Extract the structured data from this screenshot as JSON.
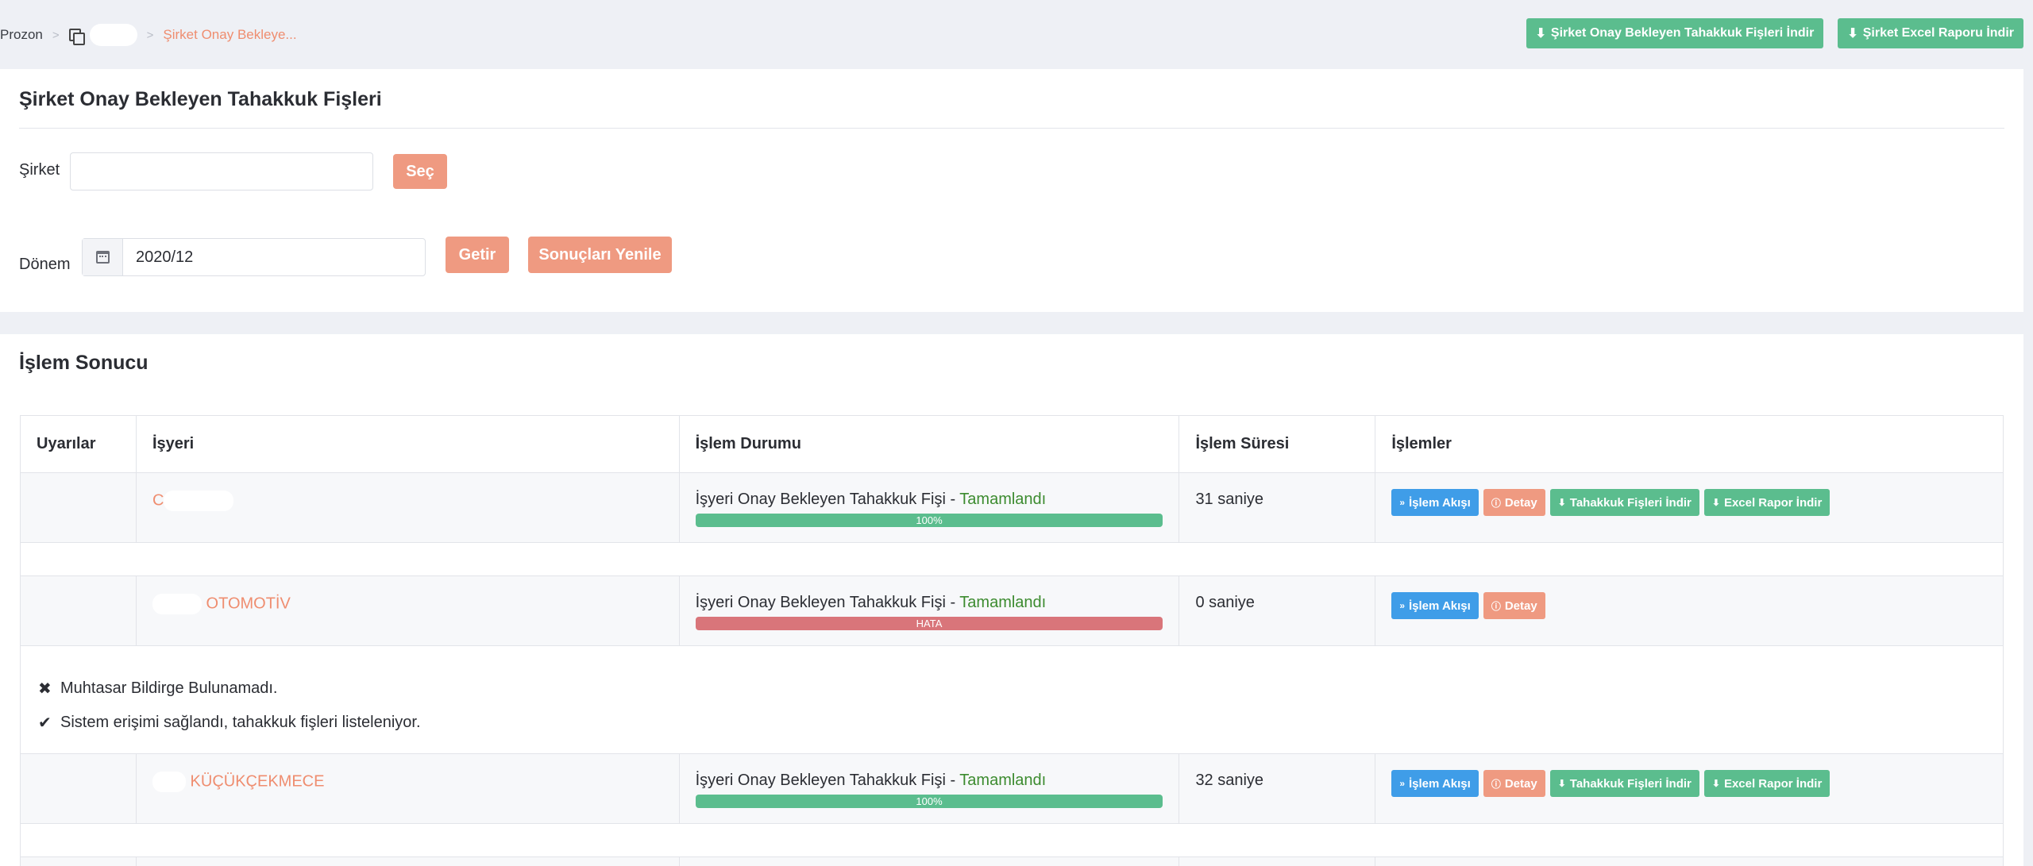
{
  "breadcrumb": {
    "root": "Prozon",
    "current": "Şirket Onay Bekleye..."
  },
  "top_actions": {
    "download_company": "Şirket Onay Bekleyen Tahakkuk Fişleri İndir",
    "excel_report": "Şirket Excel Raporu İndir"
  },
  "form": {
    "title": "Şirket Onay Bekleyen Tahakkuk Fişleri",
    "company_label": "Şirket",
    "company_value": "",
    "select_button": "Seç",
    "period_label": "Dönem",
    "period_value": "2020/12",
    "fetch_button": "Getir",
    "refresh_button": "Sonuçları Yenile"
  },
  "results": {
    "title": "İşlem Sonucu",
    "columns": [
      "Uyarılar",
      "İşyeri",
      "İşlem Durumu",
      "İşlem Süresi",
      "İşlemler"
    ],
    "status_prefix": "İşyeri Onay Bekleyen Tahakkuk Fişi - ",
    "rows": [
      {
        "workplace": "C",
        "status": "Tamamlandı",
        "progress_label": "100%",
        "progress": 1.0,
        "duration": "31 saniye",
        "actions": [
          "İşlem Akışı",
          "Detay",
          "Tahakkuk Fişleri İndir",
          "Excel Rapor İndir"
        ]
      },
      {
        "workplace": "OTOMOTİV",
        "status": "Tamamlandı",
        "progress_label": "HATA",
        "progress": 1.0,
        "duration": "0 saniye",
        "actions": [
          "İşlem Akışı",
          "Detay"
        ],
        "messages": [
          {
            "icon": "times-icon",
            "text": "Muhtasar Bildirge Bulunamadı."
          },
          {
            "icon": "check-icon",
            "text": "Sistem erişimi sağlandı, tahakkuk fişleri listeleniyor."
          }
        ]
      },
      {
        "workplace": "KÜÇÜKÇEKMECE",
        "status": "Tamamlandı",
        "progress_label": "100%",
        "progress": 1.0,
        "duration": "32 saniye",
        "actions": [
          "İşlem Akışı",
          "Detay",
          "Tahakkuk Fişleri İndir",
          "Excel Rapor İndir"
        ]
      }
    ]
  },
  "colors": {
    "accent_salmon": "#ef9a81",
    "success_green": "#5bbd8e",
    "info_blue": "#3f9de8",
    "error_red": "#d9757a",
    "status_text_green": "#3c8b2f"
  }
}
